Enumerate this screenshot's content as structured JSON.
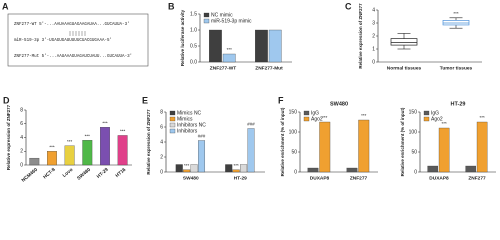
{
  "chart_data": [
    {
      "type": "sequence",
      "panel": "A",
      "lines": [
        "ZNF277-WT  5'-...AAUAAAGUAGAAGAUAA...GUCAUUA-3'",
        "miR-519-3p  3'-UGAGUGAUUUUUCUACGUGAAA-5'",
        "ZNF277-Mut  5'-...AAUAAAGUAGAUCUAUU...GUCAUUA-3'"
      ]
    },
    {
      "type": "bar",
      "panel": "B",
      "ylabel": "Relative luciferase activity",
      "categories": [
        "ZNF277-WT",
        "ZNF277-Mut"
      ],
      "series": [
        {
          "name": "NC mimic",
          "color": "#3f3f3f",
          "values": [
            1.0,
            1.0
          ]
        },
        {
          "name": "miR-519-3p mimic",
          "color": "#9fc8ee",
          "values": [
            0.25,
            1.0
          ],
          "annotations": [
            "***",
            null
          ]
        }
      ],
      "ylim": [
        0,
        1.5
      ],
      "yticks": [
        {
          "value": 0,
          "label": "0.0"
        },
        {
          "value": 0.5,
          "label": "0.5"
        },
        {
          "value": 1,
          "label": "1.0"
        },
        {
          "value": 1.5,
          "label": "1.5"
        }
      ]
    },
    {
      "type": "box",
      "panel": "C",
      "ylabel": "Relative expression of ZNF277",
      "categories": [
        "Normal tissues",
        "Tumor tissues"
      ],
      "boxes": [
        {
          "min": 1.0,
          "q1": 1.3,
          "median": 1.5,
          "q3": 1.8,
          "max": 2.2
        },
        {
          "min": 2.6,
          "q1": 2.85,
          "median": 3.0,
          "q3": 3.2,
          "max": 3.4
        }
      ],
      "annotations": [
        null,
        "***"
      ],
      "color": "#4a90d9",
      "ylim": [
        0,
        4
      ],
      "yticks": [
        0,
        1,
        2,
        3,
        4
      ]
    },
    {
      "type": "bar",
      "panel": "D",
      "ylabel": "Relative expression of ZNF277",
      "rotate_labels": true,
      "categories": [
        "NCM460",
        "HCT-8",
        "Lovo",
        "SW480",
        "HT-29",
        "HT16"
      ],
      "values": [
        1.0,
        2.0,
        2.8,
        3.6,
        5.5,
        4.3
      ],
      "colors": [
        "#8c8c8c",
        "#f0a030",
        "#e8d040",
        "#50b848",
        "#7b4fb0",
        "#e0408a"
      ],
      "annotations": [
        null,
        "***",
        "***",
        "***",
        "***",
        "***"
      ],
      "ylim": [
        0,
        8
      ],
      "yticks": [
        0,
        2,
        4,
        6,
        8
      ]
    },
    {
      "type": "bar",
      "panel": "E",
      "ylabel": "Relative expression of ZNF277",
      "categories": [
        "SW480",
        "HT-29"
      ],
      "series": [
        {
          "name": "Mimics NC",
          "color": "#3f3f3f",
          "values": [
            1.0,
            1.0
          ]
        },
        {
          "name": "Mimics",
          "color": "#f0a030",
          "values": [
            0.3,
            0.3
          ],
          "annotations": [
            "***",
            "***"
          ]
        },
        {
          "name": "Inhibitors NC",
          "color": "#d9d9d9",
          "values": [
            1.0,
            1.0
          ]
        },
        {
          "name": "Inhibitors",
          "color": "#9fc8ee",
          "values": [
            4.2,
            5.8
          ],
          "annotations": [
            "###",
            "###"
          ]
        }
      ],
      "ylim": [
        0,
        8
      ],
      "yticks": [
        0,
        2,
        4,
        6,
        8
      ]
    },
    {
      "type": "bar",
      "panel": "F",
      "title": "SW480",
      "ylabel": "Relative enrichment (% of input)",
      "categories": [
        "DUXAP8",
        "ZNF277"
      ],
      "series": [
        {
          "name": "IgG",
          "color": "#5a5a5a",
          "values": [
            10,
            10
          ]
        },
        {
          "name": "Ago2",
          "color": "#f0a030",
          "values": [
            125,
            130
          ],
          "annotations": [
            "***",
            "***"
          ]
        }
      ],
      "ylim": [
        0,
        150
      ],
      "yticks": [
        0,
        50,
        100,
        150
      ]
    },
    {
      "type": "bar",
      "title": "HT-29",
      "ylabel": "Relative enrichment (% of input)",
      "categories": [
        "DUXAP8",
        "ZNF277"
      ],
      "series": [
        {
          "name": "IgG",
          "color": "#5a5a5a",
          "values": [
            15,
            15
          ]
        },
        {
          "name": "Ago2",
          "color": "#f0a030",
          "values": [
            110,
            125
          ],
          "annotations": [
            "***",
            "***"
          ]
        }
      ],
      "ylim": [
        0,
        150
      ],
      "yticks": [
        0,
        50,
        100,
        150
      ]
    }
  ]
}
